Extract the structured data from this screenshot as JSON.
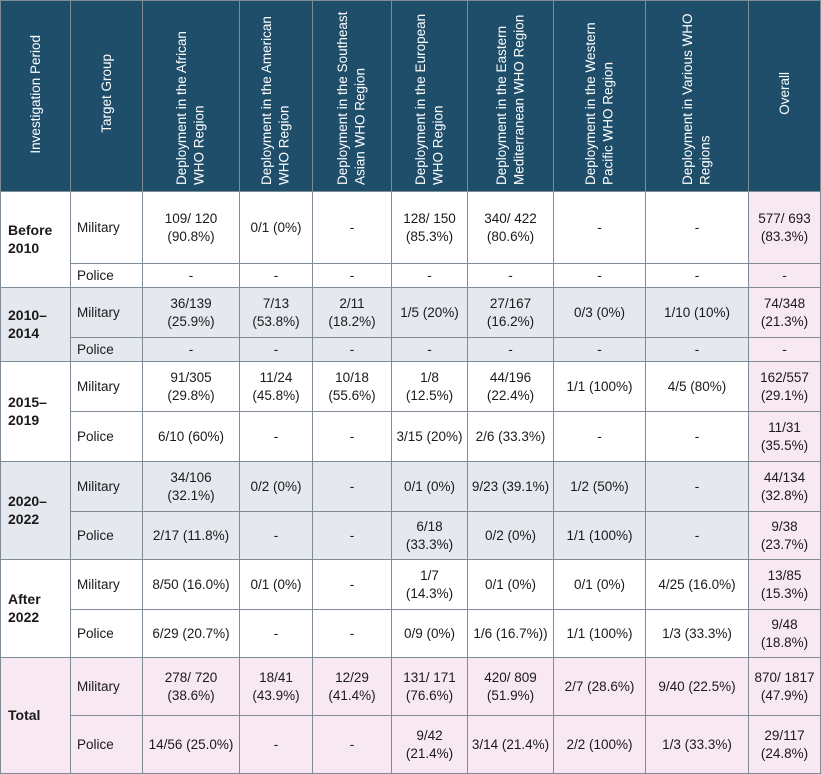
{
  "headers": [
    "Investigation Period",
    "Target Group",
    "Deployment in the African WHO Region",
    "Deployment in the American WHO Region",
    "Deployment in the Southeast Asian WHO Region",
    "Deployment in the European WHO Region",
    "Deployment in the Eastern Mediterranean WHO Region",
    "Deployment in the Western Pacific WHO Region",
    "Deployment in Various WHO Regions",
    "Overall"
  ],
  "periods": [
    {
      "label": "Before 2010",
      "rows": [
        {
          "group": "Military",
          "cells": [
            "109/ 120 (90.8%)",
            "0/1 (0%)",
            "-",
            "128/ 150 (85.3%)",
            "340/ 422 (80.6%)",
            "-",
            "-",
            "577/ 693 (83.3%)"
          ]
        },
        {
          "group": "Police",
          "cells": [
            "-",
            "-",
            "-",
            "-",
            "-",
            "-",
            "-",
            "-"
          ]
        }
      ]
    },
    {
      "label": "2010–2014",
      "rows": [
        {
          "group": "Military",
          "cells": [
            "36/139 (25.9%)",
            "7/13 (53.8%)",
            "2/11 (18.2%)",
            "1/5 (20%)",
            "27/167 (16.2%)",
            "0/3 (0%)",
            "1/10 (10%)",
            "74/348 (21.3%)"
          ]
        },
        {
          "group": "Police",
          "cells": [
            "-",
            "-",
            "-",
            "-",
            "-",
            "-",
            "-",
            "-"
          ]
        }
      ]
    },
    {
      "label": "2015–2019",
      "rows": [
        {
          "group": "Military",
          "cells": [
            "91/305 (29.8%)",
            "11/24 (45.8%)",
            "10/18 (55.6%)",
            "1/8 (12.5%)",
            "44/196 (22.4%)",
            "1/1 (100%)",
            "4/5 (80%)",
            "162/557 (29.1%)"
          ]
        },
        {
          "group": "Police",
          "cells": [
            "6/10 (60%)",
            "-",
            "-",
            "3/15 (20%)",
            "2/6 (33.3%)",
            "-",
            "-",
            "11/31 (35.5%)"
          ]
        }
      ]
    },
    {
      "label": "2020–2022",
      "rows": [
        {
          "group": "Military",
          "cells": [
            "34/106 (32.1%)",
            "0/2 (0%)",
            "-",
            "0/1 (0%)",
            "9/23 (39.1%)",
            "1/2 (50%)",
            "-",
            "44/134 (32.8%)"
          ]
        },
        {
          "group": "Police",
          "cells": [
            "2/17 (11.8%)",
            "-",
            "-",
            "6/18 (33.3%)",
            "0/2 (0%)",
            "1/1 (100%)",
            "-",
            "9/38 (23.7%)"
          ]
        }
      ]
    },
    {
      "label": "After 2022",
      "rows": [
        {
          "group": "Military",
          "cells": [
            "8/50 (16.0%)",
            "0/1 (0%)",
            "-",
            "1/7 (14.3%)",
            "0/1 (0%)",
            "0/1 (0%)",
            "4/25 (16.0%)",
            "13/85 (15.3%)"
          ]
        },
        {
          "group": "Police",
          "cells": [
            "6/29 (20.7%)",
            "-",
            "-",
            "0/9 (0%)",
            "1/6 (16.7%))",
            "1/1 (100%)",
            "1/3 (33.3%)",
            "9/48 (18.8%)"
          ]
        }
      ]
    },
    {
      "label": "Total",
      "rows": [
        {
          "group": "Military",
          "cells": [
            "278/ 720 (38.6%)",
            "18/41 (43.9%)",
            "12/29 (41.4%)",
            "131/ 171 (76.6%)",
            "420/ 809 (51.9%)",
            "2/7 (28.6%)",
            "9/40 (22.5%)",
            "870/ 1817 (47.9%)"
          ]
        },
        {
          "group": "Police",
          "cells": [
            "14/56 (25.0%)",
            "-",
            "-",
            "9/42 (21.4%)",
            "3/14 (21.4%)",
            "2/2 (100%)",
            "1/3 (33.3%)",
            "29/117 (24.8%)"
          ]
        }
      ]
    }
  ],
  "colors": {
    "header_bg": "#1f4e6b",
    "shade_bg": "#e5e8ee",
    "pink_bg": "#f8e8f2"
  }
}
